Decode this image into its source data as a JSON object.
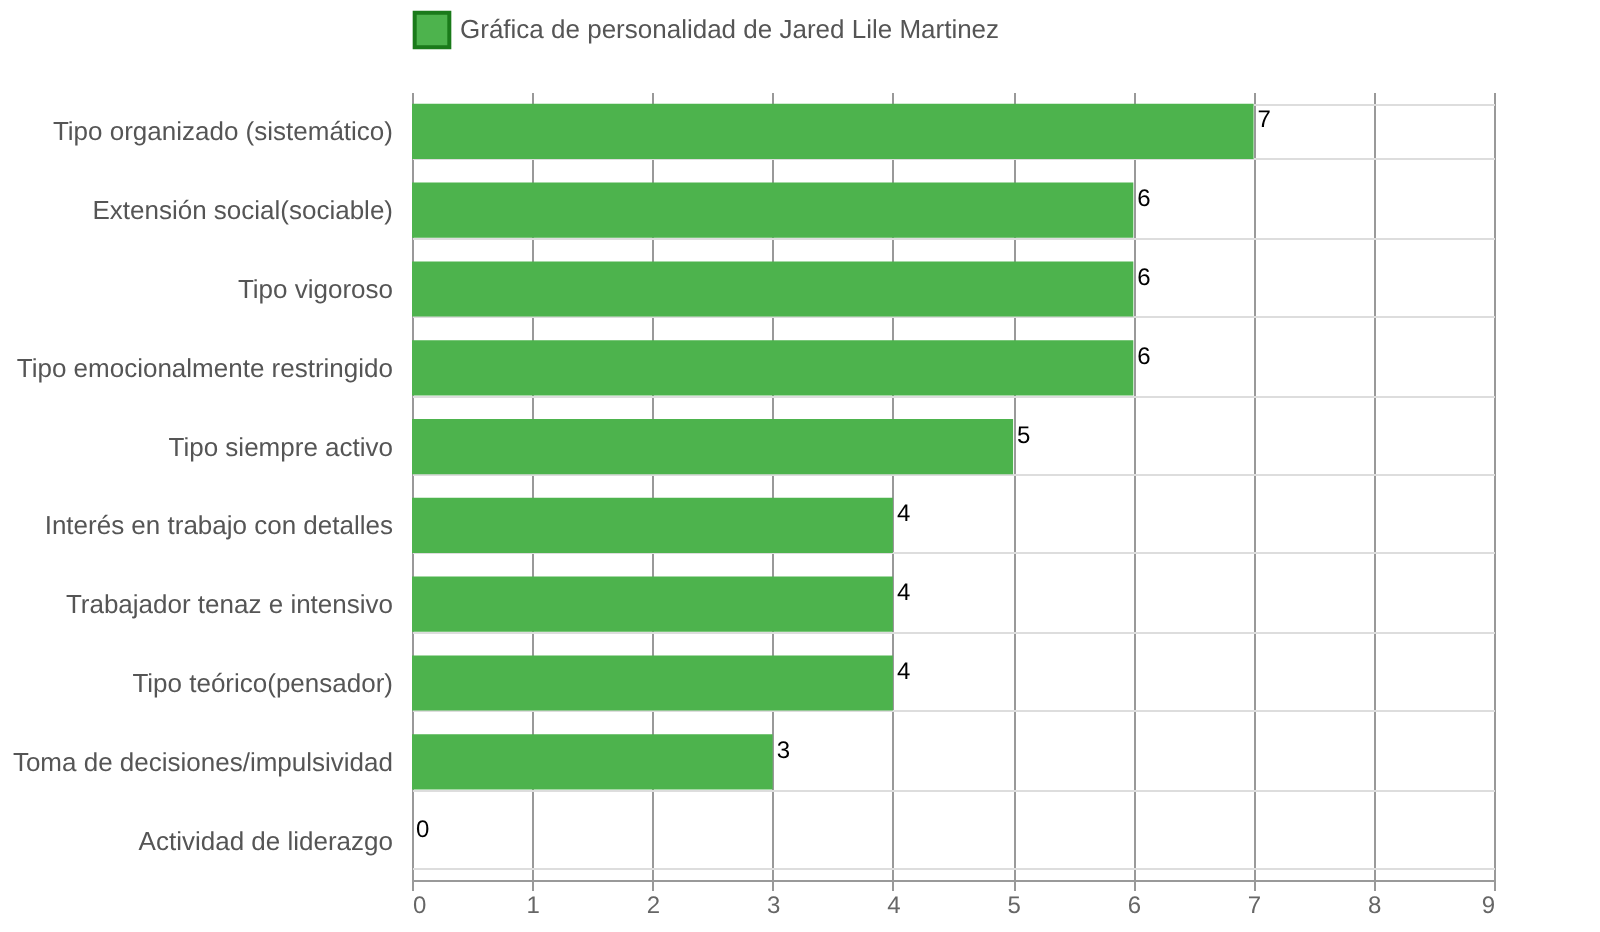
{
  "chart_data": {
    "type": "bar",
    "orientation": "horizontal",
    "categories": [
      "Tipo organizado (sistemático)",
      "Extensión social(sociable)",
      "Tipo vigoroso",
      "Tipo emocionalmente restringido",
      "Tipo siempre activo",
      "Interés en trabajo con detalles",
      "Trabajador tenaz e intensivo",
      "Tipo teórico(pensador)",
      "Toma de decisiones/impulsividad",
      "Actividad de liderazgo"
    ],
    "series": [
      {
        "name": "Gráfica de personalidad de Jared Lile Martinez",
        "color": "#4db34d",
        "values": [
          7,
          6,
          6,
          6,
          5,
          4,
          4,
          4,
          3,
          0
        ]
      }
    ],
    "xlim": [
      0,
      9
    ],
    "xticks": [
      0,
      1,
      2,
      3,
      4,
      5,
      6,
      7,
      8,
      9
    ],
    "grid": true,
    "legend": "top",
    "data_labels": true
  }
}
